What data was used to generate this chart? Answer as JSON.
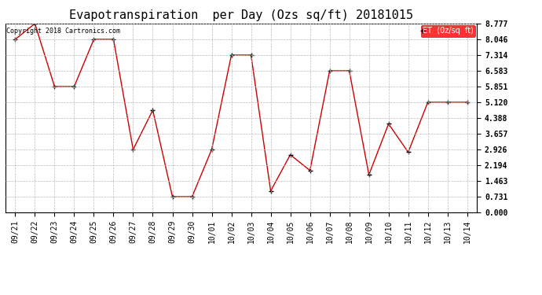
{
  "title": "Evapotranspiration  per Day (Ozs sq/ft) 20181015",
  "copyright": "Copyright 2018 Cartronics.com",
  "legend_label": "ET  (0z/sq  ft)",
  "dates": [
    "09/21",
    "09/22",
    "09/23",
    "09/24",
    "09/25",
    "09/26",
    "09/27",
    "09/28",
    "09/29",
    "09/30",
    "10/01",
    "10/02",
    "10/03",
    "10/04",
    "10/05",
    "10/06",
    "10/07",
    "10/08",
    "10/09",
    "10/10",
    "10/11",
    "10/12",
    "10/13",
    "10/14"
  ],
  "values": [
    8.046,
    8.777,
    5.851,
    5.851,
    8.046,
    8.046,
    2.926,
    4.754,
    0.731,
    0.731,
    2.926,
    7.314,
    7.314,
    0.999,
    2.68,
    1.95,
    6.583,
    6.583,
    1.75,
    4.115,
    2.8,
    5.12,
    5.12,
    5.12
  ],
  "line_color": "#cc0000",
  "marker_color": "#000000",
  "background_color": "#ffffff",
  "grid_color": "#bbbbbb",
  "yticks": [
    0.0,
    0.731,
    1.463,
    2.194,
    2.926,
    3.657,
    4.388,
    5.12,
    5.851,
    6.583,
    7.314,
    8.046,
    8.777
  ],
  "ylim": [
    0.0,
    8.777
  ],
  "title_fontsize": 11,
  "tick_fontsize": 7,
  "copyright_fontsize": 6
}
